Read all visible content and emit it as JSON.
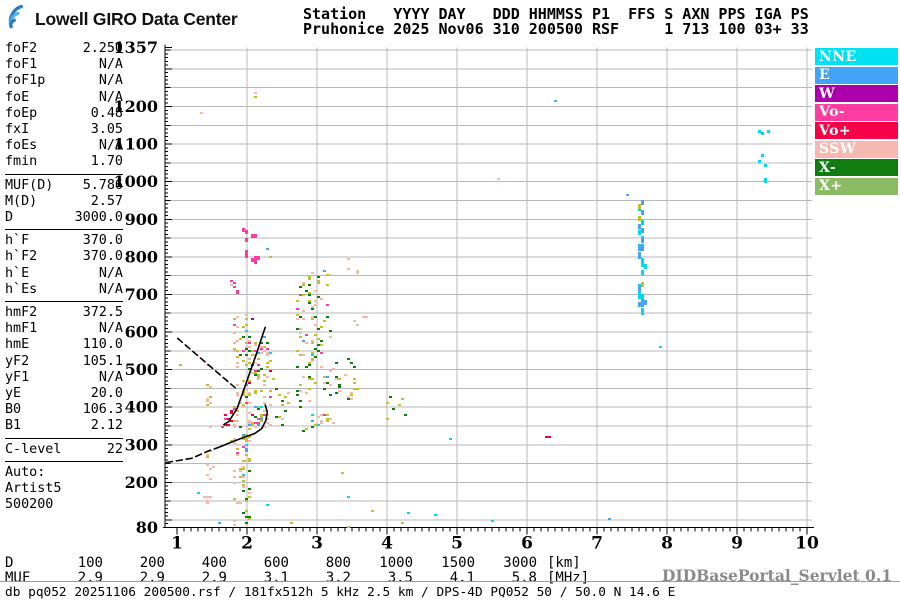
{
  "header": {
    "brand": "Lowell GIRO Data Center",
    "station_line1": "Station   YYYY DAY   DDD HHMMSS P1  FFS S AXN PPS IGA PS",
    "station_line2": "Pruhonice 2025 Nov06 310 200500 RSF     1 713 100 03+ 33"
  },
  "params": {
    "groups": [
      {
        "rows": [
          {
            "label": "foF2",
            "value": "2.250"
          },
          {
            "label": "foF1",
            "value": "N/A"
          },
          {
            "label": "foF1p",
            "value": "N/A"
          },
          {
            "label": "foE",
            "value": "N/A"
          },
          {
            "label": "foEp",
            "value": "0.48"
          },
          {
            "label": "fxI",
            "value": "3.05"
          },
          {
            "label": "foEs",
            "value": "N/A"
          },
          {
            "label": "fmin",
            "value": "1.70"
          }
        ]
      },
      {
        "rows": [
          {
            "label": "MUF(D)",
            "value": "5.786"
          },
          {
            "label": "M(D)",
            "value": "2.57"
          },
          {
            "label": "D",
            "value": "3000.0"
          }
        ]
      },
      {
        "rows": [
          {
            "label": "h`F",
            "value": "370.0"
          },
          {
            "label": "h`F2",
            "value": "370.0"
          },
          {
            "label": "h`E",
            "value": "N/A"
          },
          {
            "label": "h`Es",
            "value": "N/A"
          }
        ]
      },
      {
        "rows": [
          {
            "label": "hmF2",
            "value": "372.5"
          },
          {
            "label": "hmF1",
            "value": "N/A"
          },
          {
            "label": "hmE",
            "value": "110.0"
          },
          {
            "label": "yF2",
            "value": "105.1"
          },
          {
            "label": "yF1",
            "value": "N/A"
          },
          {
            "label": "yE",
            "value": "20.0"
          },
          {
            "label": "B0",
            "value": "106.3"
          },
          {
            "label": "B1",
            "value": "2.12"
          }
        ]
      },
      {
        "rows": [
          {
            "label": "C-level",
            "value": "22"
          }
        ]
      },
      {
        "rows": [
          {
            "label": "Auto:",
            "value": ""
          },
          {
            "label": "Artist5",
            "value": ""
          },
          {
            "label": "500200",
            "value": ""
          }
        ]
      }
    ]
  },
  "legend": {
    "items": [
      {
        "label": "NNE",
        "color": "#00e2f2"
      },
      {
        "label": "E",
        "color": "#41a4f7"
      },
      {
        "label": "W",
        "color": "#ad00ad"
      },
      {
        "label": "Vo-",
        "color": "#ff3da0"
      },
      {
        "label": "Vo+",
        "color": "#f70048"
      },
      {
        "label": "SSW",
        "color": "#f6b9b1"
      },
      {
        "label": "X-",
        "color": "#117d11"
      },
      {
        "label": "X+",
        "color": "#8cbb66"
      }
    ]
  },
  "chart_data": {
    "type": "scatter",
    "description": "ionogram echo map: virtual height [km] vs frequency [MHz]",
    "x_axis": {
      "unit": "MHz",
      "min": 0.83,
      "max": 10.06,
      "ticks": [
        1,
        2,
        3,
        4,
        5,
        6,
        7,
        8,
        9,
        10
      ],
      "minor_step": 0.1,
      "grid": "on"
    },
    "y_axis": {
      "unit": "km",
      "min": 80,
      "max": 1357,
      "tick_labels": [
        1357,
        1200,
        1100,
        1000,
        900,
        800,
        700,
        600,
        500,
        400,
        300,
        200,
        80
      ],
      "grid_step": 50,
      "minor_step": 10,
      "grid": "on"
    },
    "palette": {
      "NNE": "#00d8ee",
      "E": "#4aa3f2",
      "W": "#a800a8",
      "VoMinus": "#fa3da2",
      "VoPlus": "#ee0040",
      "SSW": "#f4b9aa",
      "XMinus": "#0b7c0e",
      "XPlus": "#bdc22e"
    },
    "seed": 123456789,
    "clusters": [
      {
        "name": "spreadF-1.45MHz",
        "f": [
          1.4,
          1.5
        ],
        "km": [
          85,
          530
        ],
        "n": 24,
        "w": {
          "SSW": 8,
          "XPlus": 2
        }
      },
      {
        "name": "spreadF-1.83MHz",
        "f": [
          1.79,
          1.88
        ],
        "km": [
          85,
          645
        ],
        "n": 40,
        "w": {
          "SSW": 6,
          "XPlus": 3,
          "VoMinus": 1
        }
      },
      {
        "name": "pink-1.8MHz-700km",
        "f": [
          1.76,
          1.85
        ],
        "km": [
          690,
          740
        ],
        "n": 7,
        "w": {
          "VoMinus": 5,
          "SSW": 3,
          "XPlus": 2
        }
      },
      {
        "name": "main-column-1.97MHz",
        "f": [
          1.91,
          2.02
        ],
        "km": [
          85,
          650
        ],
        "n": 78,
        "w": {
          "XPlus": 9,
          "SSW": 5,
          "XMinus": 4,
          "NNE": 1,
          "E": 1,
          "VoMinus": 1
        }
      },
      {
        "name": "F-region-blob",
        "f": [
          2.02,
          2.36
        ],
        "km": [
          340,
          595
        ],
        "n": 95,
        "w": {
          "XPlus": 8,
          "SSW": 6,
          "VoMinus": 2,
          "E": 1,
          "XMinus": 2,
          "NNE": 1,
          "VoPlus": 1
        }
      },
      {
        "name": "mid-2.5MHz",
        "f": [
          2.38,
          2.74
        ],
        "km": [
          350,
          455
        ],
        "n": 13,
        "w": {
          "XPlus": 5,
          "XMinus": 4,
          "SSW": 2
        }
      },
      {
        "name": "secondhop-3MHz",
        "f": [
          2.7,
          3.22
        ],
        "km": [
          340,
          765
        ],
        "n": 120,
        "w": {
          "XPlus": 8,
          "SSW": 6,
          "XMinus": 5,
          "E": 1,
          "NNE": 1,
          "VoMinus": 1
        }
      },
      {
        "name": "cluster-3.4MHz",
        "f": [
          3.28,
          3.58
        ],
        "km": [
          420,
          530
        ],
        "n": 24,
        "w": {
          "XPlus": 6,
          "XMinus": 3,
          "SSW": 2
        }
      },
      {
        "name": "salmon-3.6MHz-630km",
        "f": [
          3.5,
          3.74
        ],
        "km": [
          610,
          650
        ],
        "n": 4,
        "w": {
          "SSW": 1
        }
      },
      {
        "name": "salmon-3.5MHz-780km",
        "f": [
          3.42,
          3.62
        ],
        "km": [
          760,
          800
        ],
        "n": 4,
        "w": {
          "SSW": 1
        }
      },
      {
        "name": "green-4MHz",
        "f": [
          3.9,
          4.4
        ],
        "km": [
          370,
          435
        ],
        "n": 8,
        "w": {
          "XMinus": 1,
          "XPlus": 1
        }
      },
      {
        "name": "pink-2.1MHz-850km",
        "f": [
          1.94,
          2.16
        ],
        "km": [
          780,
          880
        ],
        "n": 13,
        "h": 4,
        "w": {
          "VoMinus": 9,
          "W": 1
        }
      },
      {
        "name": "blue-7.6MHz",
        "f": [
          7.58,
          7.67
        ],
        "km": [
          635,
          975
        ],
        "n": 34,
        "h": 5,
        "w": {
          "E": 5,
          "NNE": 4,
          "XPlus": 1
        }
      },
      {
        "name": "cyan-9.4MHz",
        "f": [
          9.3,
          9.48
        ],
        "km": [
          1005,
          1150
        ],
        "n": 9,
        "h": 3,
        "w": {
          "NNE": 1
        }
      },
      {
        "name": "red-tangent",
        "f": [
          1.62,
          1.8
        ],
        "km": [
          350,
          400
        ],
        "n": 9,
        "w": {
          "VoPlus": 4,
          "VoMinus": 1
        }
      },
      {
        "name": "red-6.3MHz",
        "f": [
          6.27,
          6.36
        ],
        "km": [
          313,
          330
        ],
        "n": 3,
        "w": {
          "VoPlus": 1
        }
      }
    ],
    "points": [
      [
        6.42,
        1218,
        "E"
      ],
      [
        7.41,
        965,
        "E"
      ],
      [
        5.6,
        1012,
        "SSW"
      ],
      [
        1.33,
        1185,
        "SSW"
      ],
      [
        2.1,
        1240,
        "SSW"
      ],
      [
        2.13,
        1228,
        "XPlus"
      ],
      [
        7.9,
        565,
        "NNE"
      ],
      [
        4.89,
        317,
        "NNE"
      ],
      [
        1.05,
        516,
        "XPlus"
      ],
      [
        1.31,
        175,
        "NNE"
      ],
      [
        1.59,
        92,
        "E"
      ],
      [
        2.3,
        140,
        "NNE"
      ],
      [
        2.62,
        95,
        "XPlus"
      ],
      [
        3.43,
        82,
        "XPlus"
      ],
      [
        3.46,
        164,
        "NNE"
      ],
      [
        3.79,
        129,
        "XPlus"
      ],
      [
        4.23,
        97,
        "XPlus"
      ],
      [
        4.3,
        120,
        "NNE"
      ],
      [
        4.68,
        115,
        "NNE"
      ],
      [
        5.5,
        100,
        "NNE"
      ],
      [
        7.18,
        105,
        "E"
      ],
      [
        3.37,
        225,
        "XPlus"
      ],
      [
        2.06,
        636,
        "W"
      ],
      [
        2.3,
        822,
        "E"
      ],
      [
        2.31,
        801,
        "XPlus"
      ]
    ],
    "curves": [
      {
        "name": "topside-extrapolation",
        "style": "dashed",
        "pts": [
          [
            1.01,
            583
          ],
          [
            1.83,
            452
          ]
        ]
      },
      {
        "name": "F-trace-fit",
        "style": "solid",
        "pts": [
          [
            1.67,
            354
          ],
          [
            1.74,
            362
          ],
          [
            1.86,
            397
          ],
          [
            2.01,
            476
          ],
          [
            2.14,
            545
          ],
          [
            2.23,
            596
          ],
          [
            2.26,
            612
          ]
        ]
      },
      {
        "name": "muf-transmission-dashed",
        "style": "dashed",
        "pts": [
          [
            0.85,
            253
          ],
          [
            1.21,
            264
          ],
          [
            1.47,
            285
          ],
          [
            1.58,
            292
          ]
        ]
      },
      {
        "name": "muf-transmission-solid",
        "style": "solid",
        "pts": [
          [
            1.58,
            292
          ],
          [
            1.76,
            306
          ],
          [
            1.94,
            319
          ],
          [
            2.11,
            330
          ],
          [
            2.21,
            343
          ],
          [
            2.27,
            365
          ],
          [
            2.29,
            388
          ],
          [
            2.26,
            406
          ]
        ]
      }
    ]
  },
  "footer": {
    "d_label": "D",
    "d_values": [
      "100",
      "200",
      "400",
      "600",
      "800",
      "1000",
      "1500",
      "3000"
    ],
    "d_unit": "[km]",
    "muf_label": "MUF",
    "muf_values": [
      "2.9",
      "2.9",
      "2.9",
      "3.1",
      "3.2",
      "3.5",
      "4.1",
      "5.8"
    ],
    "muf_unit": "[MHz]",
    "status": "db pq052 20251106 200500.rsf / 181fx512h 5 kHz 2.5 km / DPS-4D PQ052 50 / 50.0 N 14.6 E",
    "watermark": "DIDBasePortal_Servlet 0.1"
  }
}
